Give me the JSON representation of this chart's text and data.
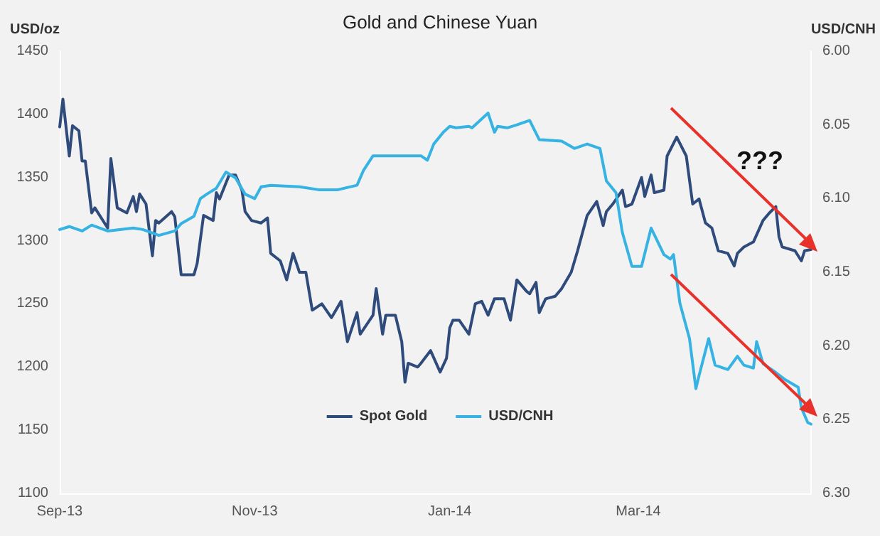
{
  "chart_data": {
    "type": "line",
    "title": "Gold and Chinese Yuan",
    "ylabel": "USD/oz",
    "y2label": "USD/CNH",
    "xlim": [
      "2013-09-01",
      "2014-04-24"
    ],
    "xticks": [
      {
        "value": "2013-09-01",
        "label": "Sep-13"
      },
      {
        "value": "2013-11-01",
        "label": "Nov-13"
      },
      {
        "value": "2014-01-01",
        "label": "Jan-14"
      },
      {
        "value": "2014-03-01",
        "label": "Mar-14"
      }
    ],
    "ylim": [
      1100,
      1450
    ],
    "yticks": [
      1100,
      1150,
      1200,
      1250,
      1300,
      1350,
      1400,
      1450
    ],
    "y2lim": [
      6.3,
      6.0
    ],
    "y2ticks": [
      {
        "value": 6.0,
        "label": "6.00"
      },
      {
        "value": 6.05,
        "label": "6.05"
      },
      {
        "value": 6.1,
        "label": "6.10"
      },
      {
        "value": 6.15,
        "label": "6.15"
      },
      {
        "value": 6.2,
        "label": "6.20"
      },
      {
        "value": 6.25,
        "label": "6.25"
      },
      {
        "value": 6.3,
        "label": "6.30"
      }
    ],
    "grid": false,
    "legend": "bottom",
    "marker": "none",
    "line_style": "solid",
    "annotations": [
      "???"
    ],
    "series": [
      {
        "name": "Spot Gold",
        "color": "#2f4b7c",
        "x": [
          "2013-09-01",
          "2013-09-02",
          "2013-09-04",
          "2013-09-05",
          "2013-09-07",
          "2013-09-08",
          "2013-09-09",
          "2013-09-11",
          "2013-09-12",
          "2013-09-16",
          "2013-09-17",
          "2013-09-19",
          "2013-09-22",
          "2013-09-24",
          "2013-09-25",
          "2013-09-26",
          "2013-09-28",
          "2013-09-30",
          "2013-10-01",
          "2013-10-02",
          "2013-10-06",
          "2013-10-07",
          "2013-10-09",
          "2013-10-13",
          "2013-10-14",
          "2013-10-16",
          "2013-10-19",
          "2013-10-20",
          "2013-10-21",
          "2013-10-24",
          "2013-10-26",
          "2013-10-28",
          "2013-10-29",
          "2013-10-31",
          "2013-11-03",
          "2013-11-05",
          "2013-11-06",
          "2013-11-09",
          "2013-11-11",
          "2013-11-13",
          "2013-11-15",
          "2013-11-17",
          "2013-11-19",
          "2013-11-22",
          "2013-11-25",
          "2013-11-28",
          "2013-11-30",
          "2013-12-03",
          "2013-12-04",
          "2013-12-08",
          "2013-12-09",
          "2013-12-11",
          "2013-12-12",
          "2013-12-15",
          "2013-12-17",
          "2013-12-18",
          "2013-12-19",
          "2013-12-22",
          "2013-12-23",
          "2013-12-26",
          "2013-12-29",
          "2013-12-31",
          "2014-01-01",
          "2014-01-02",
          "2014-01-04",
          "2014-01-07",
          "2014-01-09",
          "2014-01-11",
          "2014-01-13",
          "2014-01-15",
          "2014-01-18",
          "2014-01-20",
          "2014-01-22",
          "2014-01-25",
          "2014-01-26",
          "2014-01-28",
          "2014-01-29",
          "2014-01-31",
          "2014-02-03",
          "2014-02-05",
          "2014-02-08",
          "2014-02-10",
          "2014-02-13",
          "2014-02-16",
          "2014-02-18",
          "2014-02-19",
          "2014-02-21",
          "2014-02-24",
          "2014-02-25",
          "2014-02-27",
          "2014-03-02",
          "2014-03-03",
          "2014-03-05",
          "2014-03-06",
          "2014-03-09",
          "2014-03-10",
          "2014-03-13",
          "2014-03-16",
          "2014-03-18",
          "2014-03-20",
          "2014-03-22",
          "2014-03-24",
          "2014-03-26",
          "2014-03-29",
          "2014-03-31",
          "2014-04-01",
          "2014-04-03",
          "2014-04-06",
          "2014-04-09",
          "2014-04-11",
          "2014-04-13",
          "2014-04-14",
          "2014-04-15",
          "2014-04-19",
          "2014-04-21",
          "2014-04-22",
          "2014-04-24"
        ],
        "values": [
          1390,
          1412,
          1367,
          1391,
          1387,
          1363,
          1363,
          1322,
          1326,
          1310,
          1365,
          1326,
          1322,
          1335,
          1323,
          1337,
          1329,
          1288,
          1316,
          1314,
          1323,
          1319,
          1273,
          1273,
          1282,
          1320,
          1316,
          1338,
          1333,
          1352,
          1352,
          1340,
          1323,
          1316,
          1314,
          1318,
          1290,
          1284,
          1269,
          1290,
          1275,
          1275,
          1245,
          1250,
          1239,
          1252,
          1220,
          1243,
          1226,
          1241,
          1262,
          1226,
          1241,
          1241,
          1220,
          1188,
          1203,
          1200,
          1203,
          1213,
          1196,
          1207,
          1231,
          1237,
          1237,
          1226,
          1250,
          1252,
          1241,
          1254,
          1254,
          1237,
          1269,
          1260,
          1258,
          1267,
          1243,
          1254,
          1256,
          1262,
          1275,
          1292,
          1320,
          1331,
          1312,
          1323,
          1329,
          1340,
          1327,
          1329,
          1350,
          1335,
          1352,
          1338,
          1340,
          1367,
          1382,
          1367,
          1329,
          1333,
          1314,
          1310,
          1292,
          1290,
          1280,
          1290,
          1295,
          1299,
          1316,
          1322,
          1327,
          1303,
          1295,
          1292,
          1284,
          1292,
          1293
        ]
      },
      {
        "name": "USD/CNH",
        "color": "#36b3e3",
        "axis": "y2",
        "x": [
          "2013-09-01",
          "2013-09-04",
          "2013-09-08",
          "2013-09-11",
          "2013-09-16",
          "2013-09-24",
          "2013-09-27",
          "2013-10-02",
          "2013-10-07",
          "2013-10-09",
          "2013-10-13",
          "2013-10-15",
          "2013-10-17",
          "2013-10-20",
          "2013-10-23",
          "2013-10-26",
          "2013-10-29",
          "2013-11-01",
          "2013-11-03",
          "2013-11-06",
          "2013-11-15",
          "2013-11-21",
          "2013-11-27",
          "2013-12-03",
          "2013-12-05",
          "2013-12-08",
          "2013-12-14",
          "2013-12-23",
          "2013-12-25",
          "2013-12-27",
          "2013-12-30",
          "2014-01-01",
          "2014-01-03",
          "2014-01-07",
          "2014-01-08",
          "2014-01-13",
          "2014-01-15",
          "2014-01-16",
          "2014-01-19",
          "2014-01-22",
          "2014-01-26",
          "2014-01-29",
          "2014-02-05",
          "2014-02-09",
          "2014-02-13",
          "2014-02-17",
          "2014-02-19",
          "2014-02-22",
          "2014-02-24",
          "2014-02-27",
          "2014-03-02",
          "2014-03-05",
          "2014-03-09",
          "2014-03-11",
          "2014-03-12",
          "2014-03-14",
          "2014-03-17",
          "2014-03-19",
          "2014-03-20",
          "2014-03-23",
          "2014-03-25",
          "2014-03-29",
          "2014-04-01",
          "2014-04-03",
          "2014-04-06",
          "2014-04-07",
          "2014-04-09",
          "2014-04-13",
          "2014-04-16",
          "2014-04-20",
          "2014-04-21",
          "2014-04-23",
          "2014-04-24"
        ],
        "values": [
          6.121,
          6.119,
          6.122,
          6.118,
          6.122,
          6.12,
          6.121,
          6.125,
          6.122,
          6.117,
          6.112,
          6.1,
          6.097,
          6.093,
          6.082,
          6.086,
          6.097,
          6.1,
          6.092,
          6.091,
          6.092,
          6.094,
          6.094,
          6.091,
          6.081,
          6.071,
          6.071,
          6.071,
          6.074,
          6.063,
          6.055,
          6.051,
          6.052,
          6.051,
          6.052,
          6.042,
          6.055,
          6.051,
          6.052,
          6.05,
          6.047,
          6.06,
          6.061,
          6.066,
          6.063,
          6.066,
          6.088,
          6.096,
          6.123,
          6.146,
          6.146,
          6.12,
          6.138,
          6.141,
          6.138,
          6.171,
          6.195,
          6.229,
          6.22,
          6.195,
          6.213,
          6.216,
          6.207,
          6.213,
          6.215,
          6.197,
          6.212,
          6.218,
          6.223,
          6.228,
          6.242,
          6.252,
          6.253
        ]
      }
    ]
  }
}
